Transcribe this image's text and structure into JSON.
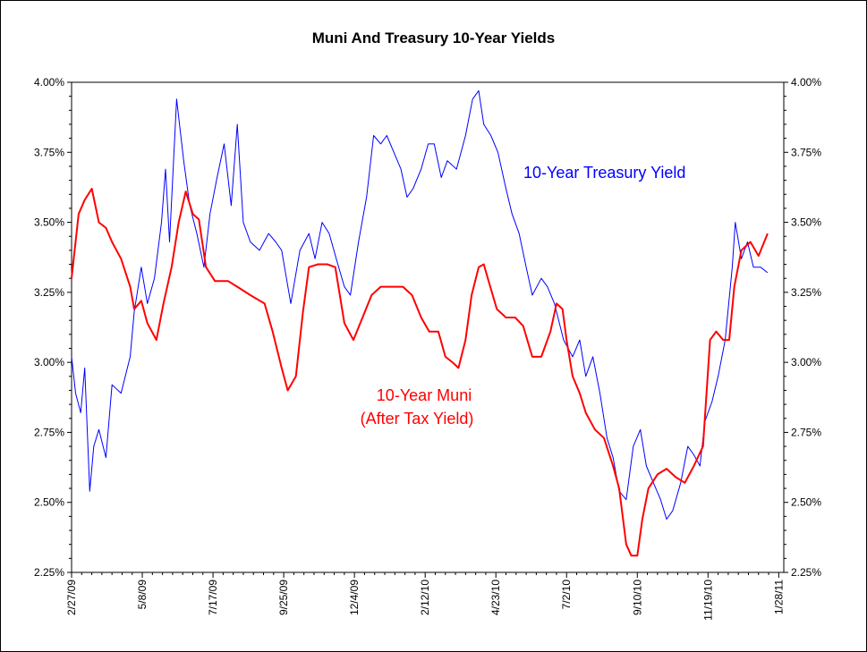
{
  "chart_data": {
    "type": "line",
    "title": "Muni And Treasury 10-Year Yields",
    "xlabel": "",
    "ylabel": "",
    "x_unit": "days since 2/27/09",
    "xlim": [
      0,
      705
    ],
    "ylim": [
      2.25,
      4.0
    ],
    "y_ticks": [
      "2.25%",
      "2.50%",
      "2.75%",
      "3.00%",
      "3.25%",
      "3.50%",
      "3.75%",
      "4.00%"
    ],
    "y_tick_values": [
      2.25,
      2.5,
      2.75,
      3.0,
      3.25,
      3.5,
      3.75,
      4.0
    ],
    "x_ticks": [
      "2/27/09",
      "5/8/09",
      "7/17/09",
      "9/25/09",
      "12/4/09",
      "2/12/10",
      "4/23/10",
      "7/2/10",
      "9/10/10",
      "11/19/10",
      "1/28/11"
    ],
    "x_tick_values": [
      0,
      70,
      140,
      210,
      280,
      350,
      420,
      490,
      560,
      630,
      700
    ],
    "grid": false,
    "annotations": {
      "treasury": "10-Year Treasury Yield",
      "muni_line1": "10-Year Muni",
      "muni_line2": "(After Tax Yield)"
    },
    "series": [
      {
        "name": "10-Year Treasury Yield",
        "color": "#0000ff",
        "x": [
          0,
          4,
          9,
          13,
          18,
          22,
          27,
          34,
          40,
          49,
          58,
          62,
          69,
          75,
          82,
          89,
          93,
          97,
          104,
          111,
          117,
          124,
          131,
          137,
          144,
          151,
          158,
          164,
          170,
          177,
          186,
          195,
          202,
          208,
          217,
          226,
          235,
          241,
          248,
          255,
          262,
          270,
          276,
          284,
          292,
          299,
          306,
          312,
          319,
          326,
          332,
          338,
          346,
          353,
          359,
          366,
          372,
          381,
          390,
          397,
          403,
          408,
          415,
          422,
          430,
          436,
          443,
          450,
          456,
          465,
          471,
          478,
          487,
          496,
          503,
          509,
          516,
          523,
          530,
          536,
          542,
          549,
          556,
          563,
          569,
          576,
          583,
          589,
          595,
          603,
          610,
          616,
          622,
          627,
          634,
          640,
          647,
          654,
          657,
          663,
          669,
          675,
          682,
          689
        ],
        "values": [
          3.02,
          2.89,
          2.82,
          2.98,
          2.54,
          2.7,
          2.76,
          2.66,
          2.92,
          2.89,
          3.02,
          3.18,
          3.34,
          3.21,
          3.3,
          3.5,
          3.69,
          3.43,
          3.94,
          3.72,
          3.56,
          3.46,
          3.34,
          3.53,
          3.66,
          3.78,
          3.56,
          3.85,
          3.5,
          3.43,
          3.4,
          3.46,
          3.43,
          3.4,
          3.21,
          3.4,
          3.46,
          3.37,
          3.5,
          3.46,
          3.37,
          3.27,
          3.24,
          3.43,
          3.59,
          3.81,
          3.78,
          3.81,
          3.75,
          3.69,
          3.59,
          3.62,
          3.69,
          3.78,
          3.78,
          3.66,
          3.72,
          3.69,
          3.81,
          3.94,
          3.97,
          3.85,
          3.81,
          3.75,
          3.62,
          3.53,
          3.46,
          3.34,
          3.24,
          3.3,
          3.27,
          3.21,
          3.08,
          3.02,
          3.08,
          2.95,
          3.02,
          2.89,
          2.73,
          2.66,
          2.54,
          2.51,
          2.7,
          2.76,
          2.63,
          2.57,
          2.51,
          2.44,
          2.47,
          2.57,
          2.7,
          2.67,
          2.63,
          2.79,
          2.86,
          2.95,
          3.08,
          3.34,
          3.5,
          3.37,
          3.43,
          3.34,
          3.34,
          3.32
        ]
      },
      {
        "name": "10-Year Muni (After Tax Yield)",
        "color": "#ff0000",
        "x": [
          0,
          7,
          13,
          20,
          27,
          34,
          40,
          49,
          58,
          62,
          69,
          75,
          84,
          91,
          99,
          106,
          113,
          120,
          126,
          133,
          142,
          155,
          164,
          177,
          191,
          199,
          208,
          214,
          222,
          229,
          235,
          244,
          253,
          261,
          270,
          279,
          288,
          297,
          306,
          315,
          328,
          337,
          346,
          354,
          363,
          370,
          377,
          383,
          390,
          396,
          403,
          408,
          412,
          421,
          430,
          439,
          447,
          456,
          465,
          474,
          480,
          486,
          490,
          496,
          503,
          509,
          518,
          527,
          536,
          542,
          549,
          554,
          560,
          565,
          571,
          580,
          589,
          598,
          607,
          616,
          625,
          632,
          638,
          645,
          651,
          656,
          663,
          672,
          680,
          689
        ],
        "values": [
          3.3,
          3.53,
          3.58,
          3.62,
          3.5,
          3.48,
          3.43,
          3.37,
          3.27,
          3.19,
          3.22,
          3.14,
          3.08,
          3.21,
          3.34,
          3.5,
          3.61,
          3.53,
          3.51,
          3.34,
          3.29,
          3.29,
          3.27,
          3.24,
          3.21,
          3.11,
          2.98,
          2.9,
          2.95,
          3.18,
          3.34,
          3.35,
          3.35,
          3.34,
          3.14,
          3.08,
          3.16,
          3.24,
          3.27,
          3.27,
          3.27,
          3.24,
          3.16,
          3.11,
          3.11,
          3.02,
          3.0,
          2.98,
          3.08,
          3.24,
          3.34,
          3.35,
          3.3,
          3.19,
          3.16,
          3.16,
          3.13,
          3.02,
          3.02,
          3.11,
          3.21,
          3.19,
          3.08,
          2.95,
          2.89,
          2.82,
          2.76,
          2.73,
          2.63,
          2.55,
          2.35,
          2.31,
          2.31,
          2.44,
          2.55,
          2.6,
          2.62,
          2.59,
          2.57,
          2.63,
          2.7,
          3.08,
          3.11,
          3.08,
          3.08,
          3.27,
          3.4,
          3.43,
          3.38,
          3.46
        ]
      }
    ]
  }
}
